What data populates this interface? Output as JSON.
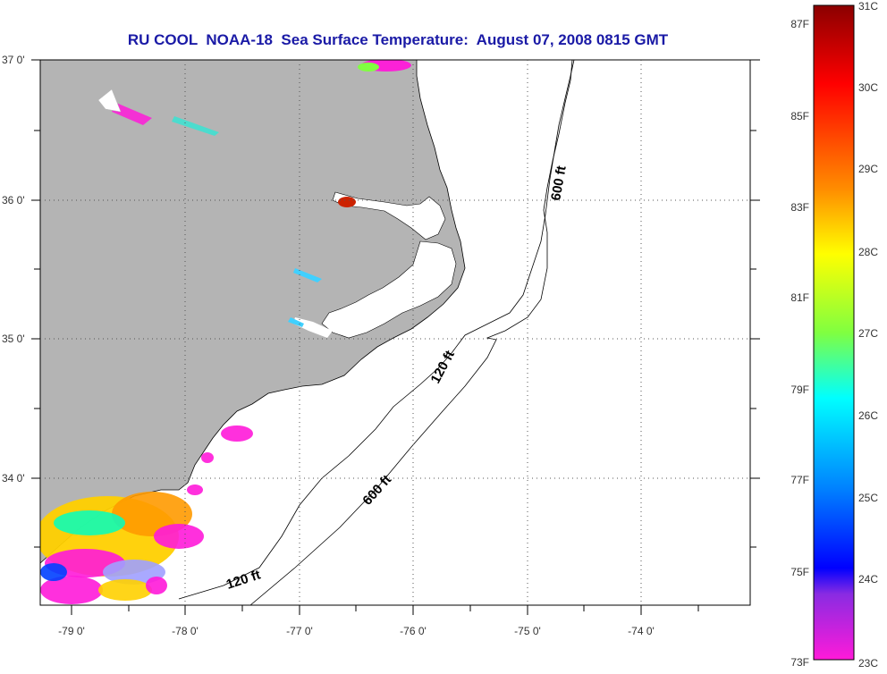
{
  "title": "RU COOL  NOAA-18  Sea Surface Temperature:  August 07, 2008 0815 GMT",
  "map": {
    "lon_labels": [
      "-79 0'",
      "-78 0'",
      "-77 0'",
      "-76 0'",
      "-75 0'",
      "-74 0'"
    ],
    "lat_labels": [
      "37 0'",
      "36 0'",
      "35 0'",
      "34 0'"
    ],
    "contour_labels": {
      "c600_north": "600 ft",
      "c120_mid": "120 ft",
      "c600_south": "600 ft",
      "c120_south": "120 ft"
    },
    "land_color": "#b4b4b4",
    "water_color": "#ffffff"
  },
  "colorbar": {
    "fahrenheit_labels": [
      "87F",
      "85F",
      "83F",
      "81F",
      "79F",
      "77F",
      "75F",
      "73F"
    ],
    "celsius_labels": [
      "31C",
      "30C",
      "29C",
      "28C",
      "27C",
      "26C",
      "25C",
      "24C",
      "23C"
    ],
    "colors": [
      "#8b0000",
      "#ff0000",
      "#ff8c00",
      "#ffff00",
      "#00ff80",
      "#00ffff",
      "#0080ff",
      "#0000ff",
      "#ff1ad9"
    ]
  }
}
